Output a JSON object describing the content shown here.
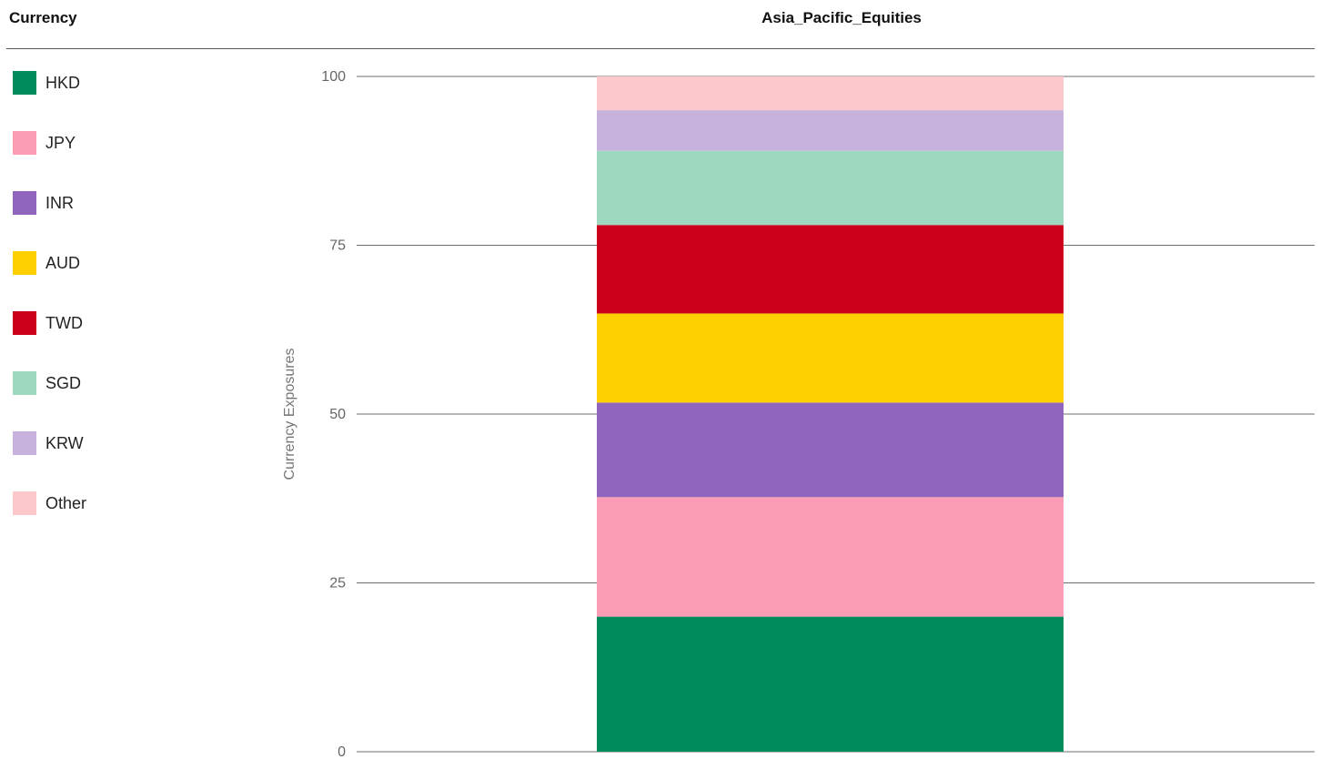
{
  "legend": {
    "title": "Currency"
  },
  "chart_data": {
    "type": "bar",
    "stacked": true,
    "title": "Asia_Pacific_Equities",
    "xlabel": "",
    "ylabel": "Currency Exposures",
    "ylim": [
      0,
      100
    ],
    "yticks": [
      "0",
      "25",
      "50",
      "75",
      "100"
    ],
    "grid": true,
    "legend_position": "left",
    "categories": [
      "Asia_Pacific_Equities"
    ],
    "series": [
      {
        "name": "HKD",
        "color": "#008b5c",
        "values": [
          20
        ]
      },
      {
        "name": "JPY",
        "color": "#fc9db5",
        "values": [
          17.7
        ]
      },
      {
        "name": "INR",
        "color": "#8f65bd",
        "values": [
          14
        ]
      },
      {
        "name": "AUD",
        "color": "#ffd000",
        "values": [
          13.2
        ]
      },
      {
        "name": "TWD",
        "color": "#cd001b",
        "values": [
          13.1
        ]
      },
      {
        "name": "SGD",
        "color": "#9ed8bf",
        "values": [
          11
        ]
      },
      {
        "name": "KRW",
        "color": "#c7b2dd",
        "values": [
          6
        ]
      },
      {
        "name": "Other",
        "color": "#fdc8cc",
        "values": [
          5
        ]
      }
    ]
  }
}
